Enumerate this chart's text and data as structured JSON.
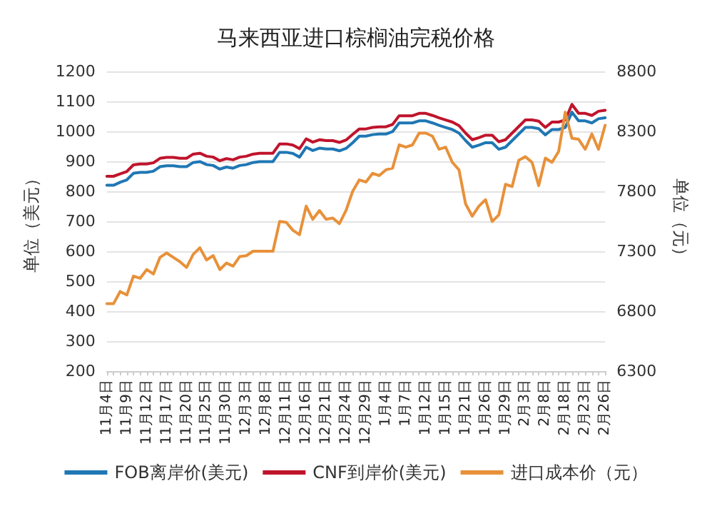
{
  "chart_data": {
    "type": "line",
    "title": "马来西亚进口棕榈油完税价格",
    "ylabel": "单位（美元）",
    "y2label": "单位（元）",
    "categories": [
      "11月4日",
      null,
      null,
      "11月9日",
      null,
      null,
      "11月12日",
      null,
      null,
      "11月17日",
      null,
      null,
      "11月20日",
      null,
      null,
      "11月25日",
      null,
      null,
      "11月30日",
      null,
      null,
      "12月3日",
      null,
      null,
      "12月8日",
      null,
      null,
      "12月11日",
      null,
      null,
      "12月16日",
      null,
      null,
      "12月21日",
      null,
      null,
      "12月24日",
      null,
      null,
      "12月29日",
      null,
      null,
      "1月4日",
      null,
      null,
      "1月7日",
      null,
      null,
      "1月12日",
      null,
      null,
      "1月15日",
      null,
      null,
      "1月21日",
      null,
      null,
      "1月26日",
      null,
      null,
      "1月29日",
      null,
      null,
      "2月3日",
      null,
      null,
      "2月8日",
      null,
      null,
      "2月18日",
      null,
      null,
      "2月23日",
      null,
      null,
      "2月26日"
    ],
    "series": [
      {
        "name": "FOB离岸价(美元)",
        "color": "#1f77b4",
        "values": [
          820,
          820,
          830,
          838,
          860,
          863,
          863,
          867,
          882,
          885,
          885,
          882,
          882,
          896,
          899,
          889,
          886,
          874,
          881,
          877,
          886,
          889,
          896,
          899,
          899,
          899,
          930,
          930,
          926,
          914,
          947,
          936,
          944,
          941,
          941,
          935,
          943,
          962,
          984,
          984,
          989,
          991,
          991,
          999,
          1028,
          1028,
          1028,
          1035,
          1035,
          1028,
          1020,
          1013,
          1006,
          994,
          969,
          947,
          954,
          962,
          962,
          940,
          947,
          969,
          991,
          1013,
          1013,
          1009,
          988,
          1006,
          1006,
          1013,
          1064,
          1035,
          1035,
          1028,
          1042,
          1045
        ]
      },
      {
        "name": "CNF到岸价(美元)",
        "color": "#c0142c",
        "values": [
          850,
          850,
          858,
          866,
          888,
          891,
          891,
          895,
          910,
          913,
          913,
          910,
          910,
          924,
          927,
          917,
          914,
          902,
          909,
          905,
          914,
          917,
          924,
          927,
          927,
          927,
          958,
          958,
          954,
          942,
          975,
          964,
          972,
          969,
          969,
          963,
          971,
          990,
          1008,
          1008,
          1013,
          1015,
          1015,
          1023,
          1052,
          1052,
          1052,
          1060,
          1060,
          1053,
          1045,
          1038,
          1031,
          1019,
          994,
          972,
          979,
          987,
          987,
          965,
          972,
          994,
          1016,
          1038,
          1038,
          1034,
          1013,
          1031,
          1031,
          1038,
          1090,
          1060,
          1060,
          1053,
          1067,
          1070
        ]
      },
      {
        "name": "进口成本价（元）",
        "color": "#e8913a",
        "axis": "y2",
        "values": [
          6862,
          6862,
          6964,
          6935,
          7092,
          7074,
          7147,
          7110,
          7249,
          7285,
          7249,
          7212,
          7165,
          7274,
          7329,
          7227,
          7263,
          7147,
          7201,
          7176,
          7256,
          7263,
          7300,
          7300,
          7300,
          7300,
          7548,
          7541,
          7475,
          7438,
          7676,
          7566,
          7639,
          7566,
          7577,
          7530,
          7640,
          7800,
          7895,
          7877,
          7950,
          7931,
          7979,
          7993,
          8187,
          8168,
          8187,
          8285,
          8285,
          8260,
          8150,
          8168,
          8041,
          7979,
          7694,
          7592,
          7676,
          7730,
          7548,
          7603,
          7858,
          7840,
          8059,
          8088,
          8041,
          7847,
          8077,
          8041,
          8132,
          8460,
          8242,
          8234,
          8150,
          8278,
          8150,
          8351
        ]
      }
    ],
    "ylim": [
      200,
      1200
    ],
    "yticks": [
      200,
      300,
      400,
      500,
      600,
      700,
      800,
      900,
      1000,
      1100,
      1200
    ],
    "y2lim": [
      6300,
      8800
    ],
    "y2ticks": [
      6300,
      6800,
      7300,
      7800,
      8300,
      8800
    ],
    "grid": "y",
    "legend": "bottom",
    "marker": "none",
    "line_style": "solid"
  }
}
